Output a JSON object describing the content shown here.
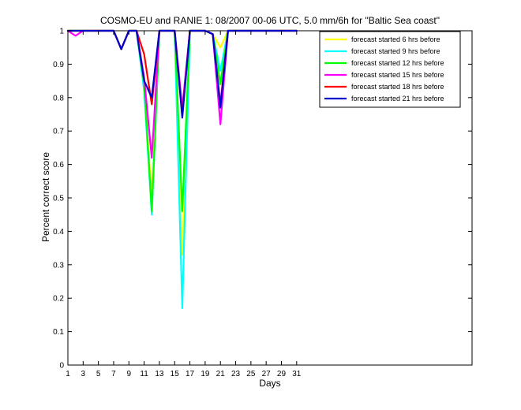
{
  "chart_data": {
    "type": "line",
    "title": "COSMO-EU and RANIE 1: 08/2007 00-06 UTC, 5.0 mm/6h for \"Baltic Sea coast\"",
    "xlabel": "Days",
    "ylabel": "Percent correct score",
    "xlim": [
      1,
      54
    ],
    "ylim": [
      0,
      1
    ],
    "xticks": [
      1,
      3,
      5,
      7,
      9,
      11,
      13,
      15,
      17,
      19,
      21,
      23,
      25,
      27,
      29,
      31
    ],
    "yticks": [
      0,
      0.1,
      0.2,
      0.3,
      0.4,
      0.5,
      0.6,
      0.7,
      0.8,
      0.9,
      1
    ],
    "ytick_labels": [
      "0",
      "0.1",
      "0.2",
      "0.3",
      "0.4",
      "0.5",
      "0.6",
      "0.7",
      "0.8",
      "0.9",
      "1"
    ],
    "legend_position": "top-right",
    "x": [
      1,
      2,
      3,
      4,
      5,
      6,
      7,
      8,
      9,
      10,
      11,
      12,
      13,
      14,
      15,
      16,
      17,
      18,
      19,
      20,
      21,
      22,
      23,
      24,
      25,
      26,
      27,
      28,
      29,
      30,
      31
    ],
    "series": [
      {
        "name": "forecast started 6 hrs before",
        "color": "#ffff00",
        "values": [
          1,
          1,
          1,
          1,
          1,
          1,
          1,
          0.945,
          1,
          1,
          0.83,
          0.5,
          1,
          1,
          1,
          0.33,
          1,
          1,
          1,
          0.99,
          0.95,
          1,
          1,
          1,
          1,
          1,
          1,
          1,
          1,
          1,
          1
        ]
      },
      {
        "name": "forecast started 9 hrs before",
        "color": "#00ffff",
        "values": [
          1,
          1,
          1,
          1,
          1,
          1,
          1,
          0.945,
          1,
          1,
          0.82,
          0.45,
          1,
          1,
          1,
          0.17,
          1,
          1,
          1,
          0.99,
          0.88,
          1,
          1,
          1,
          1,
          1,
          1,
          1,
          1,
          1,
          1
        ]
      },
      {
        "name": "forecast started 12 hrs before",
        "color": "#00ff00",
        "values": [
          1,
          1,
          1,
          1,
          1,
          1,
          1,
          0.945,
          1,
          1,
          0.84,
          0.46,
          1,
          1,
          1,
          0.46,
          1,
          1,
          1,
          0.99,
          0.84,
          1,
          1,
          1,
          1,
          1,
          1,
          1,
          1,
          1,
          1
        ]
      },
      {
        "name": "forecast started 15 hrs before",
        "color": "#ff00ff",
        "values": [
          1,
          0.985,
          1,
          1,
          1,
          1,
          1,
          0.945,
          1,
          1,
          0.86,
          0.62,
          1,
          1,
          1,
          0.77,
          1,
          1,
          1,
          0.99,
          0.72,
          1,
          1,
          1,
          1,
          1,
          1,
          1,
          1,
          1,
          1
        ]
      },
      {
        "name": "forecast started 18 hrs before",
        "color": "#ff0000",
        "values": [
          1,
          1,
          1,
          1,
          1,
          1,
          1,
          0.945,
          1,
          1,
          0.93,
          0.78,
          1,
          1,
          1,
          0.75,
          1,
          1,
          1,
          0.99,
          0.78,
          1,
          1,
          1,
          1,
          1,
          1,
          1,
          1,
          1,
          1
        ]
      },
      {
        "name": "forecast started 21 hrs before",
        "color": "#0000cc",
        "values": [
          1,
          1,
          1,
          1,
          1,
          1,
          1,
          0.945,
          1,
          1,
          0.85,
          0.8,
          1,
          1,
          1,
          0.74,
          1,
          1,
          1,
          0.99,
          0.77,
          1,
          1,
          1,
          1,
          1,
          1,
          1,
          1,
          1,
          1
        ]
      }
    ]
  }
}
